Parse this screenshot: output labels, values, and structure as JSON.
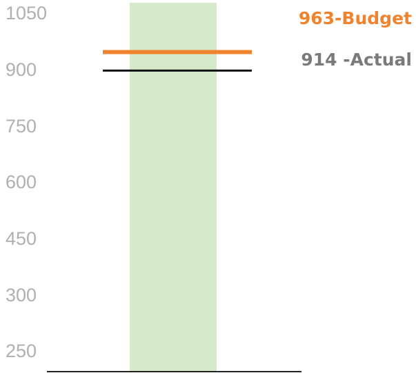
{
  "chart_data": {
    "type": "bar",
    "y_ticks": [
      "1050",
      "900",
      "750",
      "600",
      "450",
      "300",
      "250"
    ],
    "band_color": "#d6eacb",
    "markers": [
      {
        "label": "963-Budget",
        "value": 963,
        "color": "#f0842e"
      },
      {
        "label": "914 -Actual",
        "value": 914,
        "color": "#111111",
        "label_color": "#7a7a7a"
      }
    ],
    "grid": false,
    "legend": "none"
  }
}
